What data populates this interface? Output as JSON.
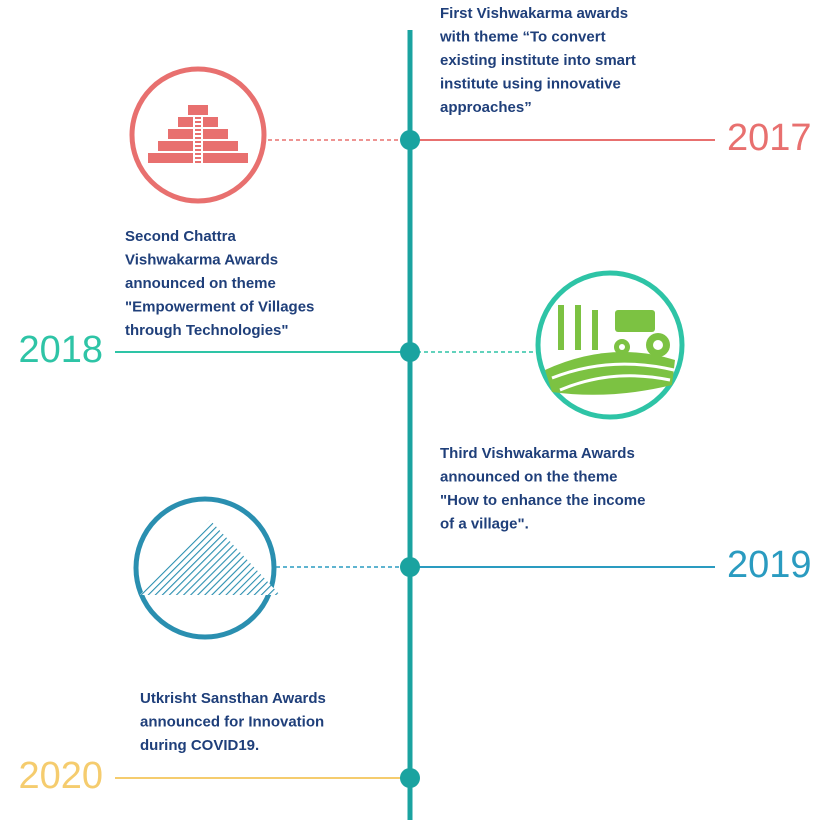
{
  "events": [
    {
      "year": "2017",
      "text": [
        "First Vishwakarma awards",
        "with theme “To convert",
        "existing institute into smart",
        "institute using innovative",
        "approaches”"
      ]
    },
    {
      "year": "2018",
      "text": [
        "Second Chattra",
        "Vishwakarma Awards",
        "announced on theme",
        "\"Empowerment of Villages",
        "through Technologies\""
      ]
    },
    {
      "year": "2019",
      "text": [
        "Third Vishwakarma Awards",
        "announced on the theme",
        "\"How to enhance the income",
        "of a village\"."
      ]
    },
    {
      "year": "2020",
      "text": [
        "Utkrisht Sansthan Awards",
        "announced for Innovation",
        "during COVID19."
      ]
    }
  ]
}
